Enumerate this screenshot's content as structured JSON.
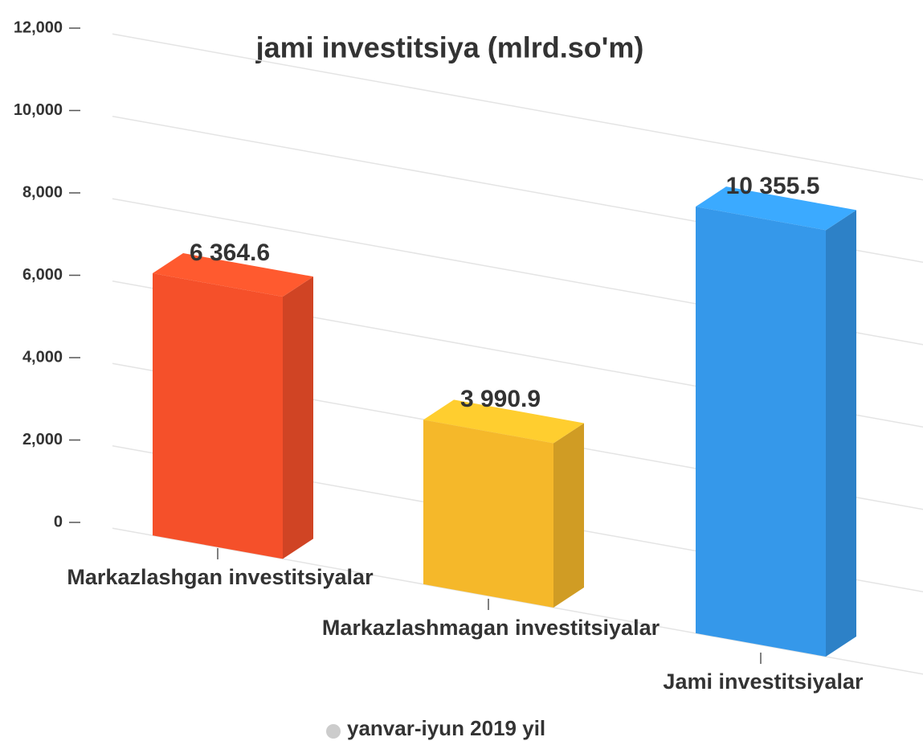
{
  "chart_data": {
    "type": "bar",
    "title": "jami investitsiya (mlrd.so'm)",
    "categories": [
      "Markazlashgan investitsiyalar",
      "Markazlashmagan investitsiyalar",
      "Jami investitsiyalar"
    ],
    "series": [
      {
        "name": "yanvar-iyun 2019 yil",
        "values": [
          6364.6,
          3990.9,
          10355.5
        ],
        "value_labels": [
          "6 364.6",
          "3 990.9",
          "10 355.5"
        ]
      }
    ],
    "colors": [
      "#f5502a",
      "#f5b82a",
      "#3598ea"
    ],
    "ylim": [
      0,
      12000
    ],
    "yticks": [
      0,
      {
        "value": 2000,
        "label": "2,000"
      },
      {
        "value": 4000,
        "label": "4,000"
      },
      {
        "value": 6000,
        "label": "6,000"
      },
      {
        "value": 8000,
        "label": "8,000"
      },
      {
        "value": 10000,
        "label": "10,000"
      },
      {
        "value": 12000,
        "label": "12,000"
      }
    ],
    "grid": true
  }
}
